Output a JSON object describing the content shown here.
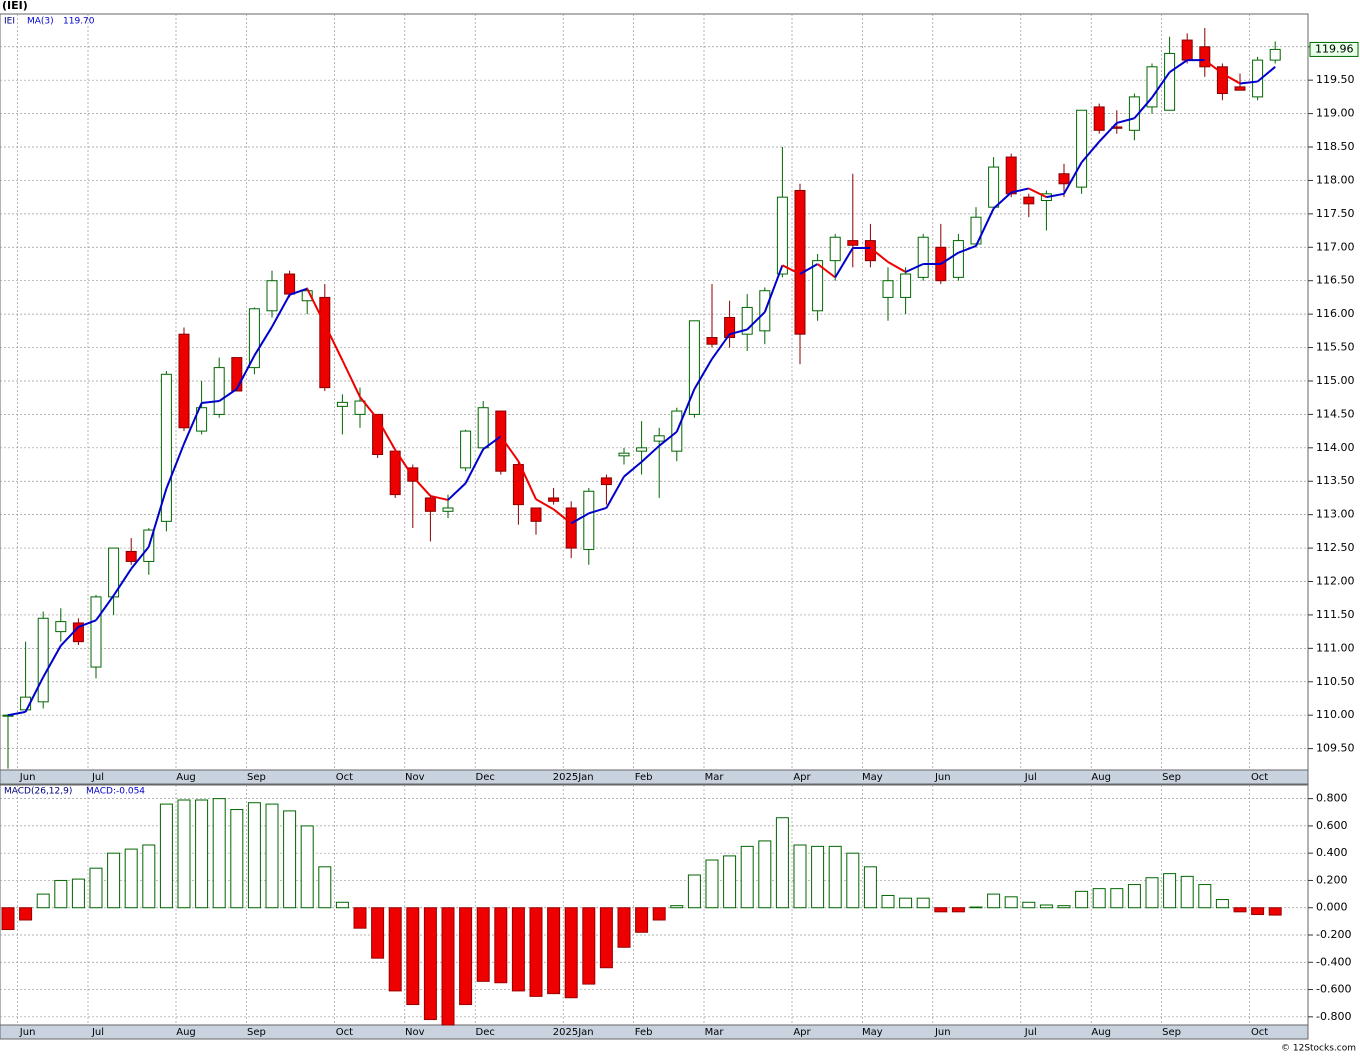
{
  "chart_data": [
    {
      "type": "candlestick",
      "title": "(IEI)",
      "symbol": "IEI",
      "categories": [
        null,
        "Jun",
        null,
        null,
        null,
        "Jul",
        null,
        null,
        null,
        null,
        "Aug",
        null,
        null,
        null,
        "Sep",
        null,
        null,
        null,
        null,
        "Oct",
        null,
        null,
        null,
        "Nov",
        null,
        null,
        null,
        "Dec",
        null,
        null,
        null,
        null,
        "2025Jan",
        null,
        null,
        null,
        "Feb",
        null,
        null,
        null,
        "Mar",
        null,
        null,
        null,
        null,
        "Apr",
        null,
        null,
        null,
        "May",
        null,
        null,
        null,
        "Jun",
        null,
        null,
        null,
        null,
        "Jul",
        null,
        null,
        null,
        "Aug",
        null,
        null,
        null,
        "Sep",
        null,
        null,
        null,
        null,
        "Oct",
        null
      ],
      "open": [
        110.0,
        110.08,
        110.2,
        111.25,
        111.38,
        110.72,
        111.77,
        112.45,
        112.3,
        112.9,
        115.7,
        114.25,
        114.5,
        115.35,
        115.2,
        116.05,
        116.6,
        116.2,
        116.25,
        114.62,
        114.5,
        114.5,
        113.95,
        113.7,
        113.25,
        113.05,
        113.7,
        114.0,
        114.55,
        113.75,
        113.1,
        113.25,
        113.1,
        112.48,
        113.55,
        113.88,
        113.95,
        114.1,
        113.95,
        114.5,
        115.65,
        115.95,
        115.7,
        115.75,
        116.6,
        117.85,
        116.05,
        116.8,
        117.1,
        117.1,
        116.25,
        116.25,
        116.55,
        117.0,
        116.55,
        117.05,
        117.6,
        118.35,
        117.75,
        117.7,
        118.1,
        117.9,
        119.1,
        118.8,
        118.75,
        119.1,
        119.05,
        120.1,
        120.0,
        119.7,
        119.4,
        119.25,
        119.8
      ],
      "high": [
        110.02,
        111.1,
        111.55,
        111.6,
        111.45,
        111.8,
        112.5,
        112.65,
        112.8,
        115.15,
        115.8,
        115.0,
        115.35,
        115.35,
        116.1,
        116.65,
        116.65,
        116.4,
        116.45,
        114.8,
        114.9,
        114.5,
        113.95,
        113.75,
        113.3,
        113.3,
        114.27,
        114.7,
        114.55,
        113.8,
        113.1,
        113.4,
        113.2,
        113.4,
        113.6,
        114.0,
        114.4,
        114.3,
        114.6,
        115.9,
        116.45,
        116.2,
        116.3,
        116.4,
        118.5,
        117.95,
        116.9,
        117.2,
        118.1,
        117.35,
        116.7,
        116.7,
        117.2,
        117.35,
        117.2,
        117.6,
        118.35,
        118.4,
        117.8,
        117.85,
        118.25,
        119.05,
        119.15,
        119.05,
        119.3,
        119.75,
        120.15,
        120.2,
        120.28,
        119.75,
        119.6,
        119.85,
        120.08
      ],
      "low": [
        109.2,
        110.05,
        110.1,
        111.1,
        111.05,
        110.55,
        111.5,
        112.25,
        112.1,
        112.75,
        114.25,
        114.2,
        114.45,
        114.85,
        115.1,
        115.95,
        116.25,
        116.0,
        114.85,
        114.2,
        114.3,
        113.85,
        113.25,
        112.8,
        112.6,
        112.95,
        113.65,
        113.95,
        113.6,
        112.85,
        112.7,
        113.15,
        112.35,
        112.25,
        113.15,
        113.75,
        113.6,
        113.25,
        113.8,
        114.45,
        115.5,
        115.5,
        115.45,
        115.55,
        116.55,
        115.25,
        115.9,
        116.5,
        116.7,
        116.7,
        115.9,
        116.0,
        116.5,
        116.45,
        116.5,
        117.0,
        117.55,
        117.75,
        117.45,
        117.25,
        117.75,
        117.8,
        118.7,
        118.7,
        118.6,
        119.0,
        119.05,
        119.75,
        119.55,
        119.2,
        119.35,
        119.2,
        119.75
      ],
      "close": [
        110.0,
        110.27,
        111.45,
        111.4,
        111.1,
        111.77,
        112.5,
        112.3,
        112.77,
        115.1,
        114.3,
        114.6,
        115.2,
        114.85,
        116.08,
        116.5,
        116.3,
        116.35,
        114.9,
        114.68,
        114.7,
        113.9,
        113.3,
        113.5,
        113.05,
        113.1,
        114.25,
        114.6,
        113.65,
        113.15,
        112.9,
        113.2,
        112.5,
        113.35,
        113.45,
        113.92,
        114.0,
        114.18,
        114.55,
        115.9,
        115.55,
        115.65,
        116.1,
        116.35,
        117.75,
        115.7,
        116.8,
        117.15,
        117.03,
        116.8,
        116.5,
        116.6,
        117.15,
        116.5,
        117.1,
        117.45,
        118.2,
        117.8,
        117.65,
        117.8,
        117.95,
        119.05,
        118.75,
        118.78,
        119.25,
        119.7,
        119.9,
        119.8,
        119.7,
        119.3,
        119.35,
        119.8,
        119.96
      ],
      "up_color": "#006600",
      "down_color": "#ee0000",
      "ma": {
        "name": "MA(3)",
        "value_label": "119.70",
        "up_color": "#0000cc",
        "down_color": "#ee0000",
        "values": [
          110.0,
          110.05,
          110.57,
          111.04,
          111.32,
          111.42,
          111.79,
          112.19,
          112.52,
          113.39,
          114.06,
          114.67,
          114.7,
          114.88,
          115.38,
          115.81,
          116.29,
          116.38,
          115.85,
          115.31,
          114.76,
          114.43,
          113.97,
          113.57,
          113.28,
          113.22,
          113.47,
          113.98,
          114.17,
          113.8,
          113.23,
          113.08,
          112.87,
          113.02,
          113.1,
          113.57,
          113.79,
          114.03,
          114.24,
          114.88,
          115.33,
          115.7,
          115.77,
          116.03,
          116.73,
          116.6,
          116.75,
          116.55,
          116.99,
          116.99,
          116.78,
          116.63,
          116.75,
          116.75,
          116.92,
          117.02,
          117.58,
          117.82,
          117.88,
          117.75,
          117.8,
          118.27,
          118.58,
          118.86,
          118.93,
          119.24,
          119.62,
          119.8,
          119.8,
          119.6,
          119.45,
          119.48,
          119.7
        ]
      },
      "last_price": 119.96,
      "ylim": [
        109.18,
        120.49
      ],
      "yticks": [
        {
          "value": 109.5,
          "label": "109.50"
        },
        {
          "value": 110,
          "label": "110.00"
        },
        {
          "value": 110.5,
          "label": "110.50"
        },
        {
          "value": 111,
          "label": "111.00"
        },
        {
          "value": 111.5,
          "label": "111.50"
        },
        {
          "value": 112,
          "label": "112.00"
        },
        {
          "value": 112.5,
          "label": "112.50"
        },
        {
          "value": 113,
          "label": "113.00"
        },
        {
          "value": 113.5,
          "label": "113.50"
        },
        {
          "value": 114,
          "label": "114.00"
        },
        {
          "value": 114.5,
          "label": "114.50"
        },
        {
          "value": 115,
          "label": "115.00"
        },
        {
          "value": 115.5,
          "label": "115.50"
        },
        {
          "value": 116,
          "label": "116.00"
        },
        {
          "value": 116.5,
          "label": "116.50"
        },
        {
          "value": 117,
          "label": "117.00"
        },
        {
          "value": 117.5,
          "label": "117.50"
        },
        {
          "value": 118,
          "label": "118.00"
        },
        {
          "value": 118.5,
          "label": "118.50"
        },
        {
          "value": 119,
          "label": "119.00"
        },
        {
          "value": 119.5,
          "label": "119.50"
        },
        {
          "value": 120,
          "label": "120.00"
        }
      ],
      "grid": true
    },
    {
      "type": "bar",
      "name": "MACD(26,12,9)",
      "value_label": "MACD:-0.054",
      "categories": [
        null,
        "Jun",
        null,
        null,
        null,
        "Jul",
        null,
        null,
        null,
        null,
        "Aug",
        null,
        null,
        null,
        "Sep",
        null,
        null,
        null,
        null,
        "Oct",
        null,
        null,
        null,
        "Nov",
        null,
        null,
        null,
        "Dec",
        null,
        null,
        null,
        null,
        "2025Jan",
        null,
        null,
        null,
        "Feb",
        null,
        null,
        null,
        "Mar",
        null,
        null,
        null,
        null,
        "Apr",
        null,
        null,
        null,
        "May",
        null,
        null,
        null,
        "Jun",
        null,
        null,
        null,
        null,
        "Jul",
        null,
        null,
        null,
        "Aug",
        null,
        null,
        null,
        "Sep",
        null,
        null,
        null,
        null,
        "Oct",
        null
      ],
      "values": [
        -0.16,
        -0.09,
        0.1,
        0.2,
        0.21,
        0.29,
        0.4,
        0.43,
        0.46,
        0.76,
        0.79,
        0.79,
        0.8,
        0.72,
        0.77,
        0.76,
        0.71,
        0.6,
        0.3,
        0.04,
        -0.15,
        -0.37,
        -0.61,
        -0.71,
        -0.82,
        -0.86,
        -0.71,
        -0.54,
        -0.55,
        -0.61,
        -0.65,
        -0.63,
        -0.66,
        -0.56,
        -0.44,
        -0.29,
        -0.18,
        -0.09,
        0.015,
        0.24,
        0.35,
        0.38,
        0.45,
        0.49,
        0.66,
        0.46,
        0.45,
        0.45,
        0.4,
        0.3,
        0.09,
        0.07,
        0.07,
        -0.03,
        -0.03,
        0.005,
        0.1,
        0.08,
        0.04,
        0.02,
        0.015,
        0.12,
        0.14,
        0.14,
        0.17,
        0.22,
        0.25,
        0.23,
        0.17,
        0.06,
        -0.03,
        -0.05,
        -0.054
      ],
      "up_color": "#006600",
      "down_color": "#ee0000",
      "ylim": [
        -0.86,
        0.9
      ],
      "yticks": [
        {
          "value": -0.8,
          "label": "-0.800"
        },
        {
          "value": -0.6,
          "label": "-0.600"
        },
        {
          "value": -0.4,
          "label": "-0.400"
        },
        {
          "value": -0.2,
          "label": "-0.200"
        },
        {
          "value": 0,
          "label": "0.000"
        },
        {
          "value": 0.2,
          "label": "0.200"
        },
        {
          "value": 0.4,
          "label": "0.400"
        },
        {
          "value": 0.6,
          "label": "0.600"
        },
        {
          "value": 0.8,
          "label": "0.800"
        }
      ],
      "grid": true
    }
  ],
  "footer": "© 12Stocks.com"
}
